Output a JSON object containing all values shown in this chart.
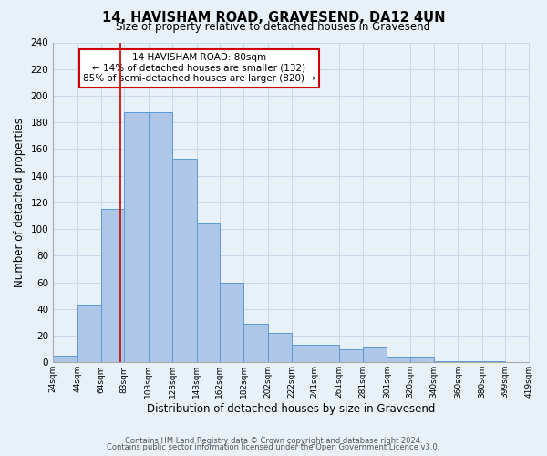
{
  "title": "14, HAVISHAM ROAD, GRAVESEND, DA12 4UN",
  "subtitle": "Size of property relative to detached houses in Gravesend",
  "bar_edges": [
    24,
    44,
    64,
    83,
    103,
    123,
    143,
    162,
    182,
    202,
    222,
    241,
    261,
    281,
    301,
    320,
    340,
    360,
    380,
    399,
    419
  ],
  "bar_heights": [
    5,
    43,
    115,
    188,
    188,
    153,
    104,
    60,
    29,
    22,
    13,
    13,
    10,
    11,
    4,
    4,
    1,
    1,
    1,
    0
  ],
  "bar_color": "#aec6e8",
  "bar_edge_color": "#5b9bd5",
  "xlabel": "Distribution of detached houses by size in Gravesend",
  "ylabel": "Number of detached properties",
  "ylim": [
    0,
    240
  ],
  "yticks": [
    0,
    20,
    40,
    60,
    80,
    100,
    120,
    140,
    160,
    180,
    200,
    220,
    240
  ],
  "xtick_labels": [
    "24sqm",
    "44sqm",
    "64sqm",
    "83sqm",
    "103sqm",
    "123sqm",
    "143sqm",
    "162sqm",
    "182sqm",
    "202sqm",
    "222sqm",
    "241sqm",
    "261sqm",
    "281sqm",
    "301sqm",
    "320sqm",
    "340sqm",
    "360sqm",
    "380sqm",
    "399sqm",
    "419sqm"
  ],
  "red_line_x": 80,
  "annotation_title": "14 HAVISHAM ROAD: 80sqm",
  "annotation_line1": "← 14% of detached houses are smaller (132)",
  "annotation_line2": "85% of semi-detached houses are larger (820) →",
  "annotation_box_color": "#ffffff",
  "annotation_box_edge_color": "#cc0000",
  "red_line_color": "#cc0000",
  "grid_color": "#c8d8e8",
  "bg_color": "#e8f0f8",
  "footer_line1": "Contains HM Land Registry data © Crown copyright and database right 2024.",
  "footer_line2": "Contains public sector information licensed under the Open Government Licence v3.0."
}
